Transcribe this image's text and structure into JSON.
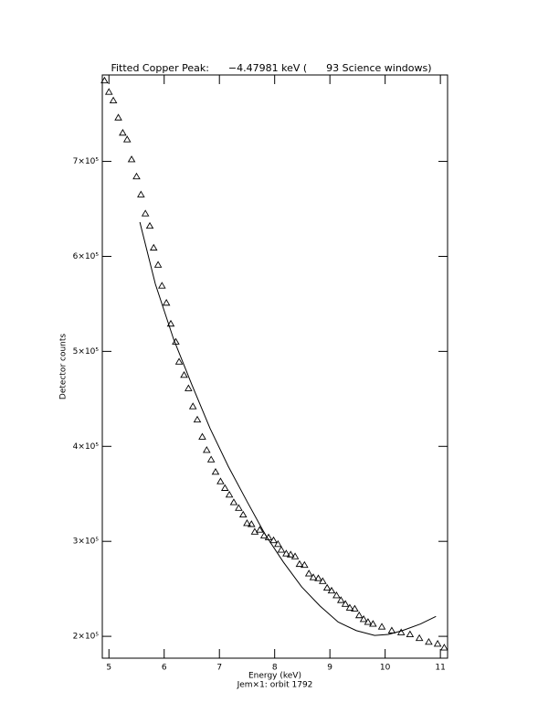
{
  "chart_data": {
    "type": "scatter",
    "title": "Fitted Copper Peak:      −4.47981 keV (      93 Science windows)",
    "x_label": "Energy (keV)",
    "subtitle": "Jem×1: orbit 1792",
    "y_label": "Detector counts",
    "xlim": [
      4.88,
      11.13
    ],
    "ylim": [
      177000,
      791000
    ],
    "xticks": [
      5,
      6,
      7,
      8,
      9,
      10,
      11
    ],
    "yticks": [
      {
        "value": 200000,
        "label": "2×10⁵"
      },
      {
        "value": 300000,
        "label": "3×10⁵"
      },
      {
        "value": 400000,
        "label": "4×10⁵"
      },
      {
        "value": 500000,
        "label": "5×10⁵"
      },
      {
        "value": 600000,
        "label": "6×10⁵"
      },
      {
        "value": 700000,
        "label": "7×10⁵"
      }
    ],
    "color": "#000000",
    "series": [
      {
        "marker": "triangle",
        "x": [
          4.92,
          5.0,
          5.08,
          5.17,
          5.25,
          5.33,
          5.41,
          5.5,
          5.58,
          5.66,
          5.74,
          5.81,
          5.89,
          5.96,
          6.04,
          6.12,
          6.21,
          6.27,
          6.36,
          6.44,
          6.52,
          6.6,
          6.69,
          6.77,
          6.85,
          6.93,
          7.02,
          7.1,
          7.18,
          7.26,
          7.35,
          7.43,
          7.5,
          7.58,
          7.64,
          7.73,
          7.81,
          7.89,
          7.98,
          8.06,
          8.12,
          8.21,
          8.29,
          8.37,
          8.45,
          8.54,
          8.62,
          8.7,
          8.79,
          8.87,
          8.95,
          9.03,
          9.12,
          9.2,
          9.28,
          9.36,
          9.45,
          9.53,
          9.61,
          9.69,
          9.78,
          9.94,
          10.12,
          10.29,
          10.45,
          10.62,
          10.79,
          10.95,
          11.07
        ],
        "values": [
          785000,
          773000,
          764000,
          746000,
          730000,
          723000,
          702000,
          684000,
          665000,
          645000,
          632000,
          609000,
          591000,
          569000,
          551000,
          529000,
          510000,
          489000,
          475000,
          461000,
          442000,
          428000,
          410000,
          396000,
          386000,
          373000,
          363000,
          356000,
          349000,
          341000,
          335000,
          328000,
          319000,
          318000,
          310000,
          312000,
          306000,
          304000,
          301000,
          297000,
          291000,
          287000,
          286000,
          284000,
          276000,
          275000,
          266000,
          262000,
          261000,
          258000,
          251000,
          248000,
          243000,
          238000,
          234000,
          230000,
          229000,
          222000,
          218000,
          215000,
          213000,
          210000,
          206000,
          204000,
          202000,
          198000,
          194000,
          192000,
          188000
        ]
      },
      {
        "marker": "line",
        "x": [
          5.56,
          5.84,
          6.17,
          6.5,
          6.83,
          7.16,
          7.5,
          7.83,
          8.16,
          8.49,
          8.82,
          9.15,
          9.48,
          9.81,
          10.06,
          10.31,
          10.64,
          10.92
        ],
        "values": [
          636000,
          571000,
          513000,
          465000,
          419000,
          379000,
          342000,
          307000,
          278000,
          252000,
          232000,
          215000,
          206000,
          201000,
          202000,
          206000,
          213000,
          221000
        ]
      }
    ]
  }
}
